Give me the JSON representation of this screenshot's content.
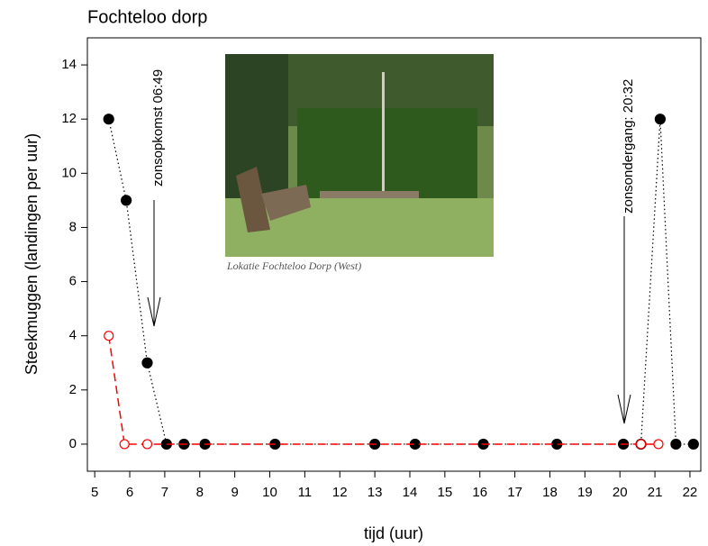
{
  "chart_data": {
    "type": "scatter",
    "title": "Fochteloo dorp",
    "x_label": "tijd (uur)",
    "y_label": "Steekmuggen (landingen per uur)",
    "annotations": [
      "zonsopkomst 06:49",
      "zonsondergang: 20:32"
    ],
    "image_caption": "Lokatie Fochteloo Dorp (West)",
    "xlim": [
      4.79,
      22.31
    ],
    "ylim": [
      -1,
      15
    ],
    "xticks": [
      5,
      6,
      7,
      8,
      9,
      10,
      11,
      12,
      13,
      14,
      15,
      16,
      17,
      18,
      19,
      20,
      21,
      22
    ],
    "yticks": [
      0,
      2,
      4,
      6,
      8,
      10,
      12,
      14
    ],
    "series": [
      {
        "color": "#000000",
        "line": "dotted",
        "marker": "filled",
        "x": [
          5.4,
          5.9,
          6.5,
          7.05,
          7.55,
          8.15,
          10.15,
          13.0,
          14.15,
          16.1,
          18.2,
          20.1,
          20.6,
          21.15,
          21.6,
          22.1
        ],
        "values": [
          12,
          9,
          3,
          0,
          0,
          0,
          0,
          0,
          0,
          0,
          0,
          0,
          0,
          12,
          0,
          0
        ]
      },
      {
        "color": "#ff0000",
        "line": "dashed",
        "marker": "open",
        "x": [
          5.4,
          5.85,
          6.5,
          20.6,
          21.1
        ],
        "values": [
          4,
          0,
          0,
          0,
          0
        ]
      }
    ]
  }
}
